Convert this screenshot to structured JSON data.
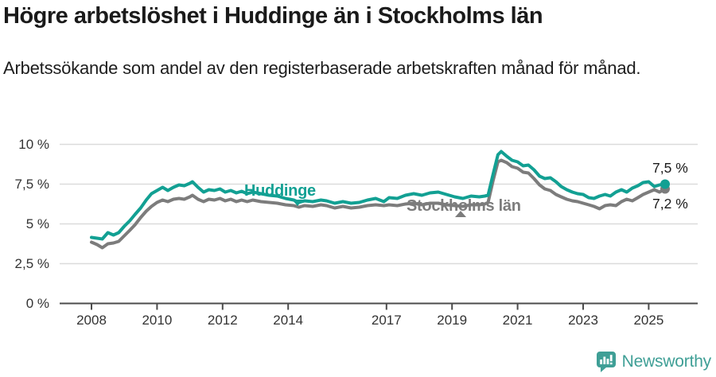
{
  "header": {
    "title": "Högre arbetslöshet i Huddinge än i Stockholms län",
    "subtitle": "Arbetssökande som andel av den registerbaserade arbetskraften månad för månad."
  },
  "chart_data": {
    "type": "line",
    "x_unit": "decimal_year",
    "x": [
      2008.0,
      2008.17,
      2008.33,
      2008.5,
      2008.67,
      2008.83,
      2009.0,
      2009.17,
      2009.33,
      2009.5,
      2009.67,
      2009.83,
      2010.0,
      2010.17,
      2010.33,
      2010.5,
      2010.67,
      2010.83,
      2011.0,
      2011.08,
      2011.25,
      2011.42,
      2011.58,
      2011.75,
      2011.92,
      2012.08,
      2012.25,
      2012.42,
      2012.58,
      2012.75,
      2012.92,
      2013.17,
      2013.42,
      2013.67,
      2013.92,
      2014.17,
      2014.33,
      2014.5,
      2014.75,
      2015.0,
      2015.17,
      2015.42,
      2015.67,
      2015.92,
      2016.17,
      2016.42,
      2016.67,
      2016.92,
      2017.08,
      2017.33,
      2017.58,
      2017.83,
      2018.08,
      2018.33,
      2018.58,
      2018.83,
      2019.08,
      2019.33,
      2019.58,
      2019.83,
      2020.0,
      2020.1,
      2020.25,
      2020.4,
      2020.5,
      2020.67,
      2020.83,
      2021.0,
      2021.17,
      2021.33,
      2021.5,
      2021.67,
      2021.83,
      2022.0,
      2022.17,
      2022.33,
      2022.5,
      2022.67,
      2022.83,
      2023.0,
      2023.17,
      2023.33,
      2023.5,
      2023.67,
      2023.83,
      2024.0,
      2024.17,
      2024.33,
      2024.5,
      2024.67,
      2024.83,
      2025.0,
      2025.17,
      2025.33,
      2025.5
    ],
    "series": [
      {
        "name": "Huddinge",
        "color": "#12a093",
        "end_label": "7,5 %",
        "end_value": 7.5,
        "values": [
          4.15,
          4.1,
          4.05,
          4.45,
          4.3,
          4.45,
          4.85,
          5.2,
          5.6,
          6.0,
          6.5,
          6.9,
          7.1,
          7.3,
          7.1,
          7.3,
          7.45,
          7.4,
          7.55,
          7.65,
          7.3,
          7.0,
          7.15,
          7.1,
          7.2,
          7.0,
          7.1,
          6.95,
          7.05,
          6.9,
          7.0,
          6.9,
          6.8,
          6.75,
          6.6,
          6.5,
          6.35,
          6.45,
          6.4,
          6.5,
          6.45,
          6.3,
          6.4,
          6.3,
          6.35,
          6.5,
          6.6,
          6.4,
          6.65,
          6.6,
          6.8,
          6.9,
          6.8,
          6.95,
          7.0,
          6.85,
          6.7,
          6.6,
          6.75,
          6.7,
          6.75,
          6.8,
          8.1,
          9.35,
          9.55,
          9.25,
          9.0,
          8.9,
          8.65,
          8.7,
          8.4,
          8.0,
          7.85,
          7.9,
          7.65,
          7.35,
          7.15,
          7.0,
          6.9,
          6.85,
          6.65,
          6.6,
          6.75,
          6.85,
          6.75,
          7.0,
          7.15,
          7.0,
          7.25,
          7.4,
          7.6,
          7.65,
          7.35,
          7.45,
          7.5
        ]
      },
      {
        "name": "Stockholms län",
        "color": "#7c7c7c",
        "end_label": "7,2 %",
        "end_value": 7.2,
        "values": [
          3.85,
          3.7,
          3.5,
          3.75,
          3.8,
          3.9,
          4.25,
          4.6,
          4.95,
          5.4,
          5.8,
          6.1,
          6.35,
          6.5,
          6.4,
          6.55,
          6.6,
          6.55,
          6.7,
          6.8,
          6.55,
          6.4,
          6.55,
          6.5,
          6.6,
          6.45,
          6.55,
          6.4,
          6.5,
          6.4,
          6.5,
          6.4,
          6.35,
          6.3,
          6.2,
          6.15,
          6.05,
          6.15,
          6.1,
          6.2,
          6.15,
          6.0,
          6.1,
          6.0,
          6.05,
          6.15,
          6.2,
          6.15,
          6.2,
          6.15,
          6.25,
          6.3,
          6.2,
          6.3,
          6.3,
          6.2,
          6.15,
          6.1,
          6.2,
          6.2,
          6.25,
          6.35,
          7.7,
          8.9,
          9.0,
          8.85,
          8.6,
          8.5,
          8.25,
          8.2,
          7.85,
          7.45,
          7.2,
          7.1,
          6.85,
          6.7,
          6.55,
          6.45,
          6.4,
          6.3,
          6.2,
          6.1,
          5.95,
          6.15,
          6.2,
          6.15,
          6.4,
          6.55,
          6.45,
          6.65,
          6.85,
          7.0,
          7.15,
          7.0,
          7.2
        ]
      }
    ],
    "title": "Högre arbetslöshet i Huddinge än i Stockholms län",
    "xlabel": "",
    "ylabel": "",
    "ylim": [
      0,
      10.5
    ],
    "grid": "horizontal",
    "legend_position": "inline-labels",
    "y_ticks": [
      {
        "value": 0,
        "label": "0 %"
      },
      {
        "value": 2.5,
        "label": "2,5 %"
      },
      {
        "value": 5,
        "label": "5 %"
      },
      {
        "value": 7.5,
        "label": "7,5 %"
      },
      {
        "value": 10,
        "label": "10 %"
      }
    ],
    "x_ticks": [
      {
        "value": 2008,
        "label": "2008"
      },
      {
        "value": 2010,
        "label": "2010"
      },
      {
        "value": 2012,
        "label": "2012"
      },
      {
        "value": 2014,
        "label": "2014"
      },
      {
        "value": 2017,
        "label": "2017"
      },
      {
        "value": 2019,
        "label": "2019"
      },
      {
        "value": 2021,
        "label": "2021"
      },
      {
        "value": 2023,
        "label": "2023"
      },
      {
        "value": 2025,
        "label": "2025"
      }
    ]
  },
  "annotations": {
    "huddinge_label": "Huddinge",
    "stockholm_label": "Stockholms län",
    "end_value_huddinge": "7,5 %",
    "end_value_stockholm": "7,2 %"
  },
  "branding": {
    "logo_text": "Newsworthy",
    "logo_color": "#3f9f96"
  },
  "colors": {
    "huddinge_line": "#12a093",
    "stockholm_line": "#7c7c7c",
    "gridline": "#dbdbdb",
    "axis_line": "#4b4b4b",
    "text": "#1a1a1a"
  }
}
